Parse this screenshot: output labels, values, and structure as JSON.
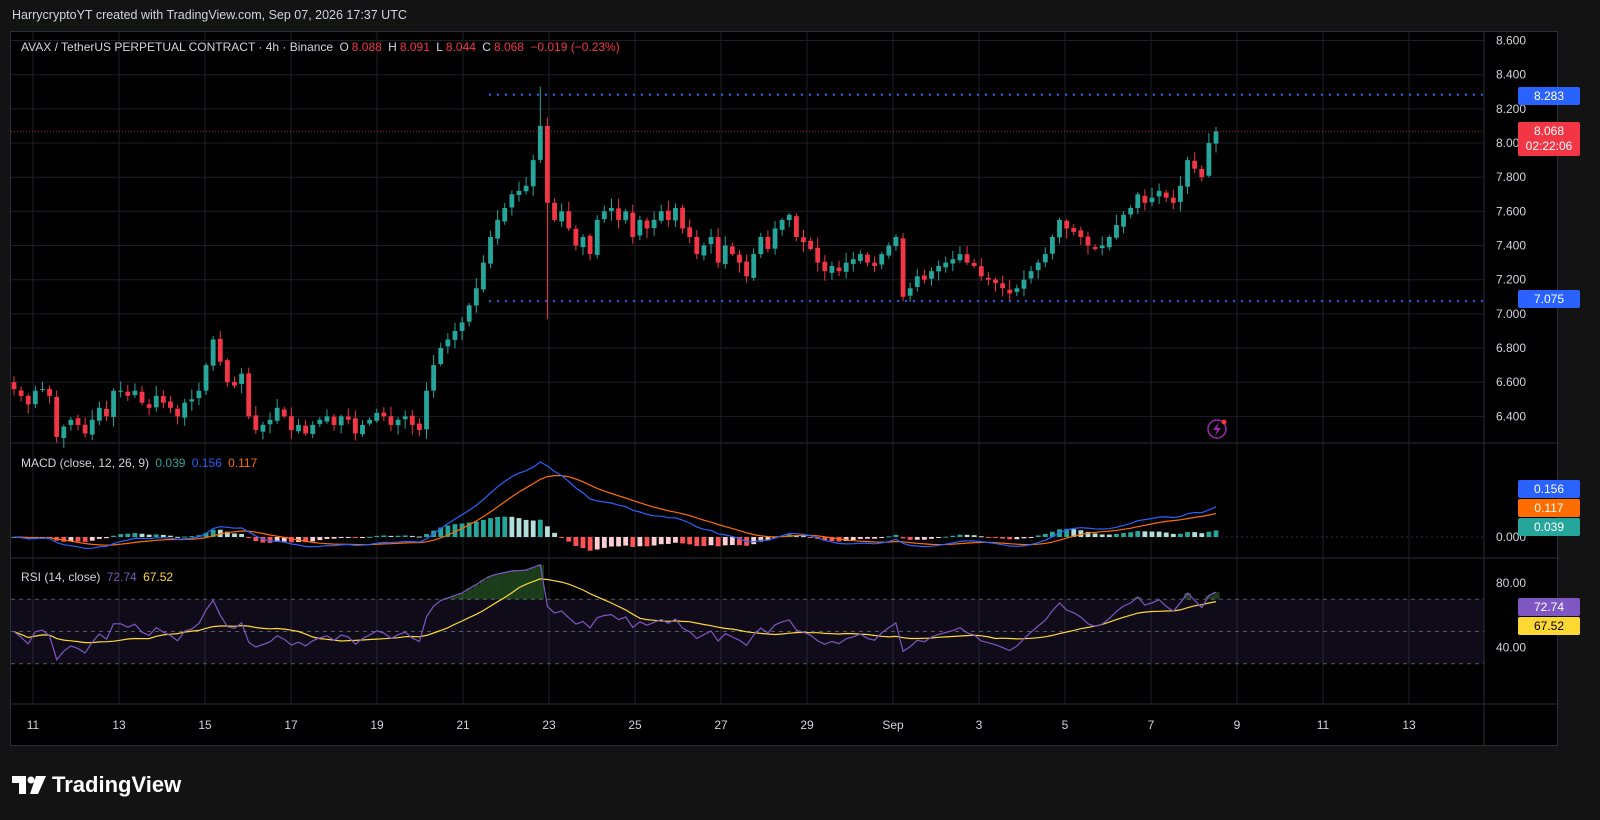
{
  "header": {
    "created_by": "HarrycryptoYT created with TradingView.com, Sep 07, 2026 17:37 UTC"
  },
  "symbol": {
    "name": "AVAX / TetherUS PERPETUAL CONTRACT · 4h · Binance",
    "open": "8.088",
    "high": "8.091",
    "low": "8.044",
    "close": "8.068",
    "change": "−0.019 (−0.23%)"
  },
  "ohlc_labels": {
    "o": "O",
    "h": "H",
    "l": "L",
    "c": "C"
  },
  "price_tags": {
    "resistance": "8.283",
    "current": "8.068",
    "countdown": "02:22:06",
    "support": "7.075"
  },
  "macd": {
    "label": "MACD (close, 12, 26, 9)",
    "hist": "0.039",
    "macd": "0.156",
    "signal": "0.117",
    "tags": {
      "macd": "0.156",
      "signal": "0.117",
      "hist": "0.039"
    },
    "zero_label": "0.000"
  },
  "rsi": {
    "label": "RSI (14, close)",
    "rsi": "72.74",
    "ma": "67.52",
    "tags": {
      "rsi": "72.74",
      "ma": "67.52"
    },
    "ticks": [
      "80.00",
      "40.00"
    ]
  },
  "x_axis_labels": [
    "11",
    "13",
    "15",
    "17",
    "19",
    "21",
    "23",
    "25",
    "27",
    "29",
    "Sep",
    "3",
    "5",
    "7",
    "9",
    "11",
    "13"
  ],
  "brand": {
    "name": "TradingView"
  },
  "colors": {
    "up": "#26a69a",
    "down": "#f23645",
    "macd": "#2962ff",
    "signal": "#ff6d00",
    "rsi": "#7e57c2",
    "rsi_ma": "#fdd835",
    "level": "#2962ff",
    "current": "#f23645"
  },
  "chart_data": {
    "type": "candlestick",
    "timeframe": "4h",
    "ylim": [
      6.25,
      8.65
    ],
    "yticks": [
      "8.600",
      "8.400",
      "8.200",
      "8.000",
      "7.800",
      "7.600",
      "7.400",
      "7.200",
      "7.000",
      "6.800",
      "6.600",
      "6.400"
    ],
    "levels": [
      8.283,
      7.075
    ],
    "current_price": 8.068,
    "closes": [
      6.56,
      6.52,
      6.47,
      6.55,
      6.56,
      6.52,
      6.28,
      6.34,
      6.38,
      6.35,
      6.3,
      6.38,
      6.45,
      6.4,
      6.55,
      6.55,
      6.52,
      6.55,
      6.48,
      6.45,
      6.52,
      6.48,
      6.45,
      6.4,
      6.48,
      6.5,
      6.55,
      6.7,
      6.85,
      6.72,
      6.6,
      6.58,
      6.65,
      6.4,
      6.32,
      6.35,
      6.38,
      6.45,
      6.4,
      6.32,
      6.35,
      6.3,
      6.35,
      6.38,
      6.4,
      6.35,
      6.4,
      6.38,
      6.3,
      6.35,
      6.38,
      6.42,
      6.4,
      6.35,
      6.38,
      6.4,
      6.35,
      6.32,
      6.55,
      6.7,
      6.8,
      6.85,
      6.9,
      6.95,
      7.05,
      7.15,
      7.3,
      7.45,
      7.55,
      7.62,
      7.7,
      7.72,
      7.75,
      7.9,
      8.1,
      7.65,
      7.55,
      7.6,
      7.5,
      7.4,
      7.45,
      7.35,
      7.55,
      7.6,
      7.62,
      7.55,
      7.6,
      7.45,
      7.55,
      7.5,
      7.55,
      7.6,
      7.55,
      7.62,
      7.5,
      7.45,
      7.35,
      7.4,
      7.45,
      7.3,
      7.4,
      7.35,
      7.3,
      7.22,
      7.35,
      7.45,
      7.38,
      7.5,
      7.55,
      7.58,
      7.45,
      7.42,
      7.38,
      7.3,
      7.25,
      7.28,
      7.25,
      7.3,
      7.32,
      7.35,
      7.3,
      7.28,
      7.35,
      7.4,
      7.45,
      7.1,
      7.15,
      7.22,
      7.2,
      7.25,
      7.28,
      7.3,
      7.32,
      7.35,
      7.3,
      7.28,
      7.22,
      7.2,
      7.18,
      7.15,
      7.12,
      7.15,
      7.2,
      7.25,
      7.3,
      7.35,
      7.45,
      7.55,
      7.5,
      7.48,
      7.45,
      7.4,
      7.38,
      7.4,
      7.45,
      7.52,
      7.58,
      7.62,
      7.7,
      7.65,
      7.68,
      7.72,
      7.68,
      7.65,
      7.75,
      7.9,
      7.85,
      7.8,
      8.0,
      8.068
    ],
    "macd": {
      "last": 0.156,
      "signal_last": 0.117,
      "hist_last": 0.039
    },
    "rsi": {
      "last": 72.74,
      "ma_last": 67.52,
      "bands": [
        70,
        50,
        30
      ]
    }
  }
}
